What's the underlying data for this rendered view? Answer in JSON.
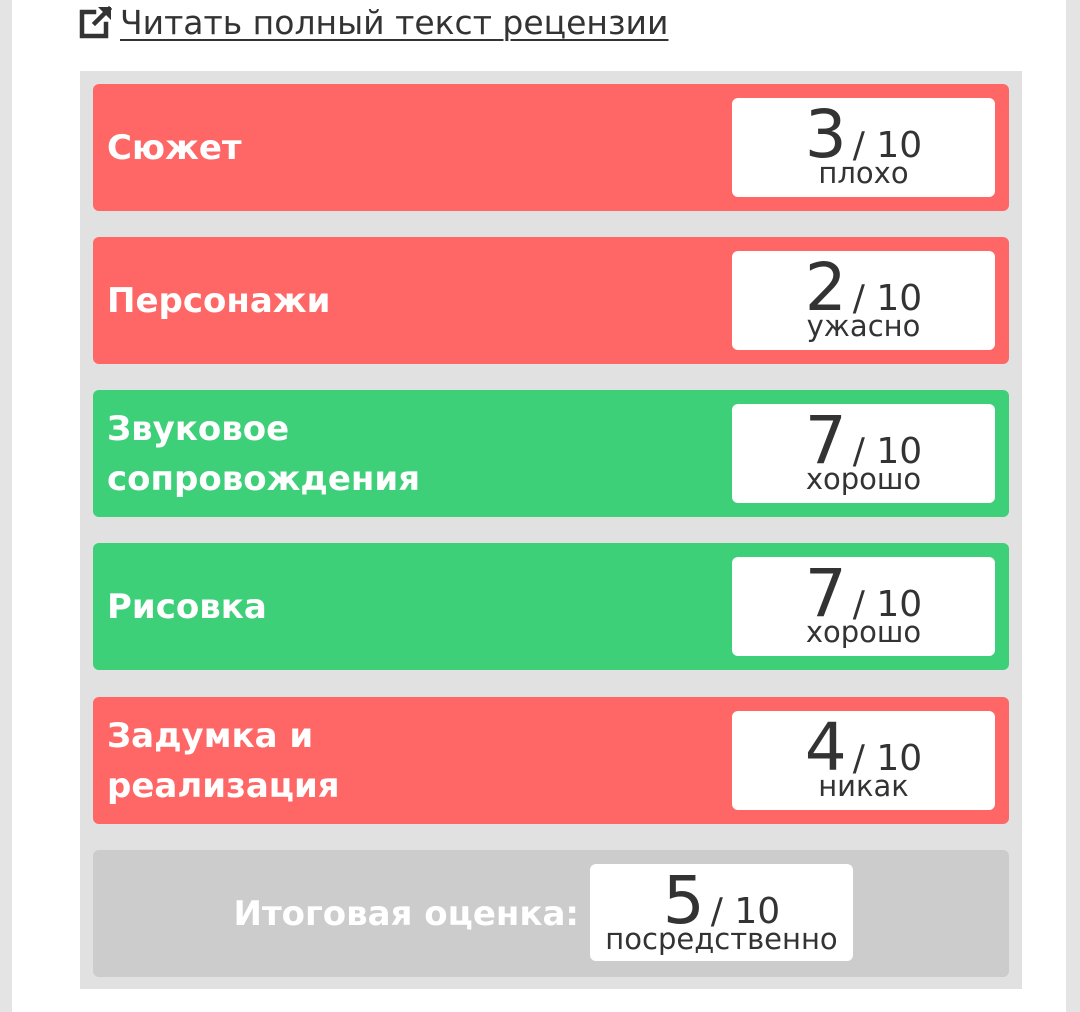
{
  "link": {
    "label": "Читать полный текст рецензии",
    "icon": "external-link-icon"
  },
  "scale_max": "/ 10",
  "categories": [
    {
      "label": "Сюжет",
      "score": "3",
      "verdict": "плохо",
      "status": "bad"
    },
    {
      "label": "Персонажи",
      "score": "2",
      "verdict": "ужасно",
      "status": "bad"
    },
    {
      "label": "Звуковое сопровождения",
      "score": "7",
      "verdict": "хорошо",
      "status": "good"
    },
    {
      "label": "Рисовка",
      "score": "7",
      "verdict": "хорошо",
      "status": "good"
    },
    {
      "label": "Задумка и реализация",
      "score": "4",
      "verdict": "никак",
      "status": "bad"
    }
  ],
  "total": {
    "label": "Итоговая оценка:",
    "score": "5",
    "verdict": "посредственно"
  },
  "colors": {
    "bad": "#ff6767",
    "good": "#3ecf79",
    "neutral": "#cccccc",
    "text": "#333333"
  }
}
